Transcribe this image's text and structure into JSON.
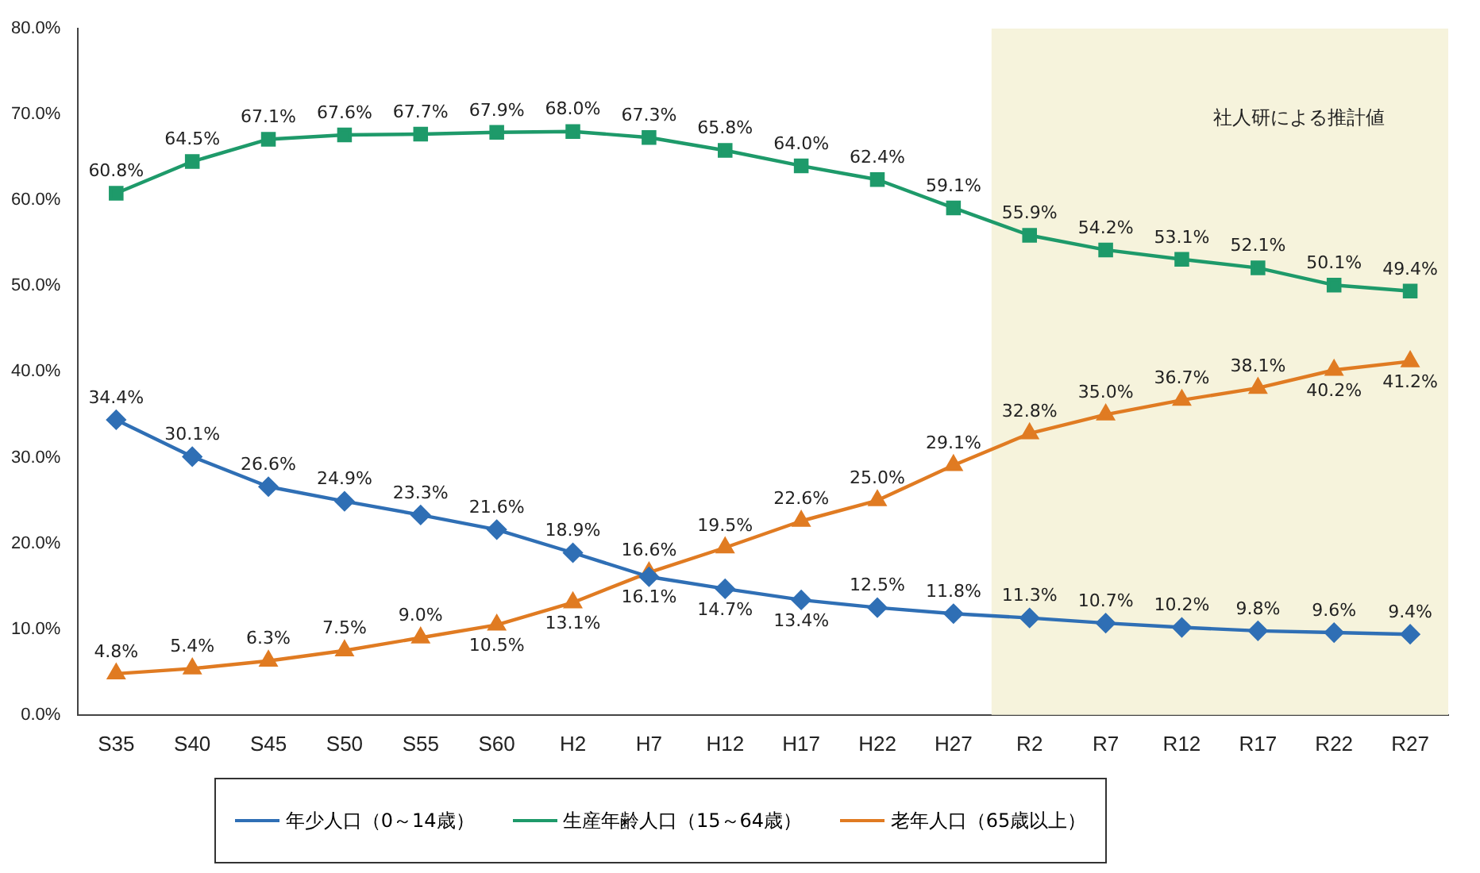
{
  "chart_data": {
    "type": "line",
    "categories": [
      "S35",
      "S40",
      "S45",
      "S50",
      "S55",
      "S60",
      "H2",
      "H7",
      "H12",
      "H17",
      "H22",
      "H27",
      "R2",
      "R7",
      "R12",
      "R17",
      "R22",
      "R27"
    ],
    "series": [
      {
        "name": "年少人口（0～14歳）",
        "color": "#2f6fb5",
        "marker": "diamond",
        "values": [
          34.4,
          30.1,
          26.6,
          24.9,
          23.3,
          21.6,
          18.9,
          16.1,
          14.7,
          13.4,
          12.5,
          11.8,
          11.3,
          10.7,
          10.2,
          9.8,
          9.6,
          9.4
        ],
        "value_labels": [
          "34.4%",
          "30.1%",
          "26.6%",
          "24.9%",
          "23.3%",
          "21.6%",
          "18.9%",
          "16.1%",
          "14.7%",
          "13.4%",
          "12.5%",
          "11.8%",
          "11.3%",
          "10.7%",
          "10.2%",
          "9.8%",
          "9.6%",
          "9.4%"
        ]
      },
      {
        "name": "生産年齢人口（15～64歳）",
        "color": "#1e9a6a",
        "marker": "square",
        "values": [
          60.8,
          64.5,
          67.1,
          67.6,
          67.7,
          67.9,
          68.0,
          67.3,
          65.8,
          64.0,
          62.4,
          59.1,
          55.9,
          54.2,
          53.1,
          52.1,
          50.1,
          49.4
        ],
        "value_labels": [
          "60.8%",
          "64.5%",
          "67.1%",
          "67.6%",
          "67.7%",
          "67.9%",
          "68.0%",
          "67.3%",
          "65.8%",
          "64.0%",
          "62.4%",
          "59.1%",
          "55.9%",
          "54.2%",
          "53.1%",
          "52.1%",
          "50.1%",
          "49.4%"
        ]
      },
      {
        "name": "老年人口（65歳以上）",
        "color": "#e07b22",
        "marker": "triangle",
        "values": [
          4.8,
          5.4,
          6.3,
          7.5,
          9.0,
          10.5,
          13.1,
          16.6,
          19.5,
          22.6,
          25.0,
          29.1,
          32.8,
          35.0,
          36.7,
          38.1,
          40.2,
          41.2
        ],
        "value_labels": [
          "4.8%",
          "5.4%",
          "6.3%",
          "7.5%",
          "9.0%",
          "10.5%",
          "13.1%",
          "16.6%",
          "19.5%",
          "22.6%",
          "25.0%",
          "29.1%",
          "32.8%",
          "35.0%",
          "36.7%",
          "38.1%",
          "40.2%",
          "41.2%"
        ]
      }
    ],
    "ylim": [
      0,
      80
    ],
    "yticks": [
      {
        "value": 0,
        "label": "0.0%"
      },
      {
        "value": 10,
        "label": "10.0%"
      },
      {
        "value": 20,
        "label": "20.0%"
      },
      {
        "value": 30,
        "label": "30.0%"
      },
      {
        "value": 40,
        "label": "40.0%"
      },
      {
        "value": 50,
        "label": "50.0%"
      },
      {
        "value": 60,
        "label": "60.0%"
      },
      {
        "value": 70,
        "label": "70.0%"
      },
      {
        "value": 80,
        "label": "80.0%"
      }
    ],
    "bands": [
      {
        "axis": "x",
        "from": "R2",
        "to": "R27",
        "label": "社人研による推計値",
        "color": "#f6f3dc"
      }
    ],
    "grid": false,
    "legend": "bottom",
    "line_style": "solid"
  }
}
